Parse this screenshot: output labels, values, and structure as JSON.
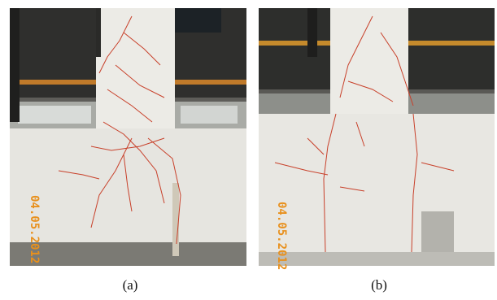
{
  "figure": {
    "panels": [
      {
        "caption": "(a)",
        "date_stamp": "04.05.2012"
      },
      {
        "caption": "(b)",
        "date_stamp": "04.05.2012"
      }
    ]
  }
}
